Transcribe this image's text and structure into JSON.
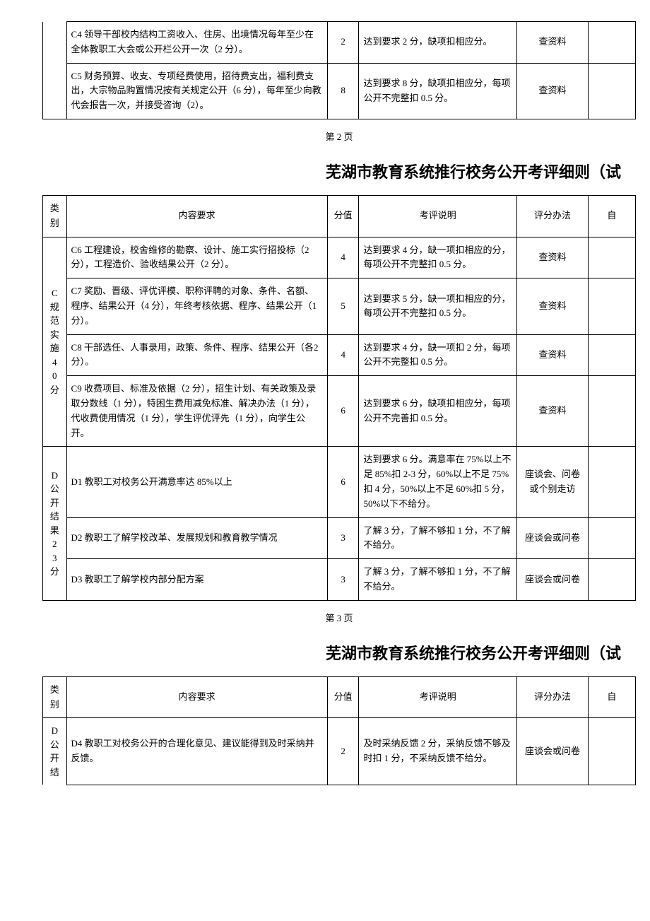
{
  "page2_label": "第 2 页",
  "page3_label": "第 3 页",
  "title": "芜湖市教育系统推行校务公开考评细则（试",
  "header": {
    "cat": "类别",
    "content": "内容要求",
    "score": "分值",
    "desc": "考评说明",
    "method": "评分办法",
    "self": "自"
  },
  "topRows": [
    {
      "content": "C4 领导干部校内结构工资收入、住房、出境情况每年至少在全体教职工大会或公开栏公开一次（2 分）。",
      "score": "2",
      "desc": "达到要求 2 分，缺项扣相应分。",
      "method": "查资料"
    },
    {
      "content": "C5 财务预算、收支、专项经费使用，招待费支出，福利费支出，大宗物品购置情况按有关规定公开（6 分），每年至少向教代会报告一次，并接受咨询（2）。",
      "score": "8",
      "desc": "达到要求 8 分，缺项扣相应分，每项公开不完整扣 0.5 分。",
      "method": "查资料"
    }
  ],
  "catC": {
    "label": "C规范实施40分",
    "rows": [
      {
        "content": "C6 工程建设，校舍维修的勘察、设计、施工实行招投标（2 分），工程造价、验收结果公开（2 分）。",
        "score": "4",
        "desc": "达到要求 4 分，缺一项扣相应的分，每项公开不完整扣 0.5 分。",
        "method": "查资料"
      },
      {
        "content": "C7 奖励、晋级、评优评模、职称评聘的对象、条件、名额、程序、结果公开（4 分），年终考核依据、程序、结果公开（1分）。",
        "score": "5",
        "desc": "达到要求 5 分，缺一项扣相应的分，每项公开不完整扣 0.5 分。",
        "method": "查资料"
      },
      {
        "content": "C8 干部选任、人事录用，政策、条件、程序、结果公开（各2分）。",
        "score": "4",
        "desc": "达到要求 4 分，缺一项扣 2 分，每项公开不完整扣 0.5 分。",
        "method": "查资料"
      },
      {
        "content": "C9 收费项目、标准及依据（2 分），招生计划、有关政策及录取分数线（1 分），特困生费用减免标准、解决办法（1 分），代收费使用情况（1 分），学生评优评先（1 分），向学生公开。",
        "score": "6",
        "desc": "达到要求 6 分，缺项扣相应分，每项公开不完善扣 0.5 分。",
        "method": "查资料"
      }
    ]
  },
  "catD": {
    "label": "D公开结果23分",
    "rows": [
      {
        "content": "D1 教职工对校务公开满意率达 85%以上",
        "score": "6",
        "desc": "达到要求 6 分。满意率在 75%以上不足 85%扣 2-3 分，60%以上不足 75%扣 4 分，50%以上不足 60%扣 5 分，50%以下不给分。",
        "method": "座谈会、问卷或个别走访"
      },
      {
        "content": "D2 教职工了解学校改革、发展规划和教育教学情况",
        "score": "3",
        "desc": "了解 3 分，了解不够扣 1 分，不了解不给分。",
        "method": "座谈会或问卷"
      },
      {
        "content": "D3 教职工了解学校内部分配方案",
        "score": "3",
        "desc": "了解 3 分，了解不够扣 1 分，不了解不给分。",
        "method": "座谈会或问卷"
      }
    ]
  },
  "catD2": {
    "label": "D公开结",
    "rows": [
      {
        "content": "D4 教职工对校务公开的合理化意见、建议能得到及时采纳并反馈。",
        "score": "2",
        "desc": "及时采纳反馈 2 分，采纳反馈不够及时扣 1 分，不采纳反馈不给分。",
        "method": "座谈会或问卷"
      }
    ]
  }
}
